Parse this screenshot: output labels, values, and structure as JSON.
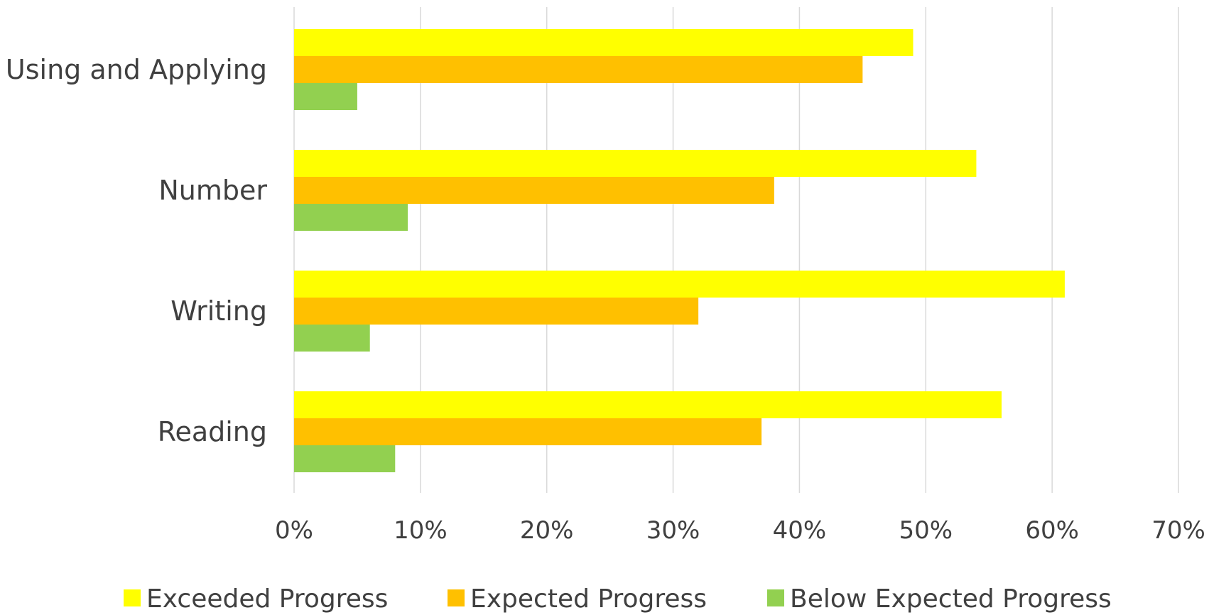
{
  "chart_data": {
    "type": "bar",
    "orientation": "horizontal",
    "categories": [
      "Using and Applying",
      "Number",
      "Writing",
      "Reading"
    ],
    "series": [
      {
        "name": "Exceeded Progress",
        "color": "#FFFF00",
        "values": [
          0.49,
          0.54,
          0.61,
          0.56
        ]
      },
      {
        "name": "Expected Progress",
        "color": "#FFC000",
        "values": [
          0.45,
          0.38,
          0.32,
          0.37
        ]
      },
      {
        "name": "Below Expected Progress",
        "color": "#92D050",
        "values": [
          0.05,
          0.09,
          0.06,
          0.08
        ]
      }
    ],
    "xlim": [
      0,
      0.7
    ],
    "xticks": [
      "0%",
      "10%",
      "20%",
      "30%",
      "40%",
      "50%",
      "60%",
      "70%"
    ],
    "grid": true,
    "grid_color": "#D9D9D9",
    "legend_position": "bottom",
    "title": "",
    "xlabel": "",
    "ylabel": ""
  }
}
